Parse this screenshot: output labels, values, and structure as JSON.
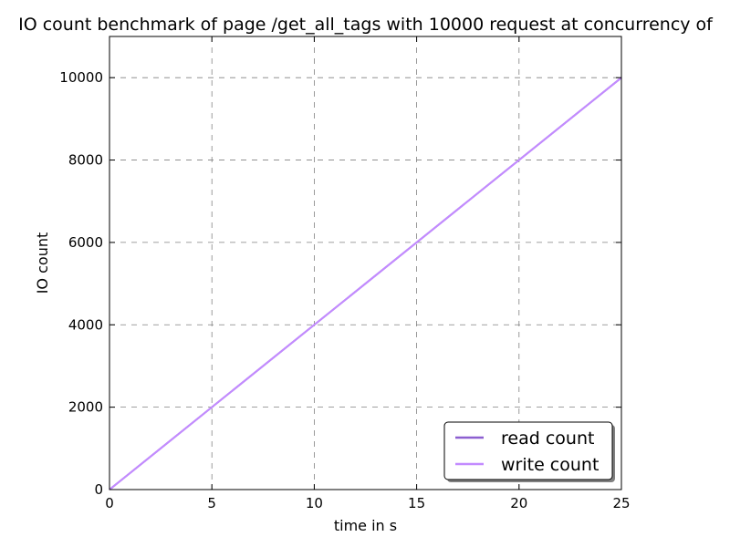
{
  "chart_data": {
    "type": "line",
    "title": "IO count benchmark of page /get_all_tags with 10000 request at concurrency of",
    "xlabel": "time in s",
    "ylabel": "IO count",
    "xlim": [
      0,
      25
    ],
    "ylim": [
      0,
      11000
    ],
    "xticks": [
      0,
      5,
      10,
      15,
      20,
      25
    ],
    "yticks": [
      0,
      2000,
      4000,
      6000,
      8000,
      10000
    ],
    "grid": true,
    "legend_position": "lower-right",
    "series": [
      {
        "name": "read count",
        "color": "#8c5fd0",
        "x": [
          0,
          25
        ],
        "y": [
          0,
          10000
        ]
      },
      {
        "name": "write count",
        "color": "#c38bff",
        "x": [
          0,
          2.5,
          5,
          7.5,
          10,
          12.5,
          15,
          17.5,
          20,
          22.5,
          25
        ],
        "y": [
          0,
          1000,
          2000,
          3000,
          4000,
          5000,
          6000,
          7000,
          8000,
          9000,
          10000
        ]
      }
    ]
  }
}
